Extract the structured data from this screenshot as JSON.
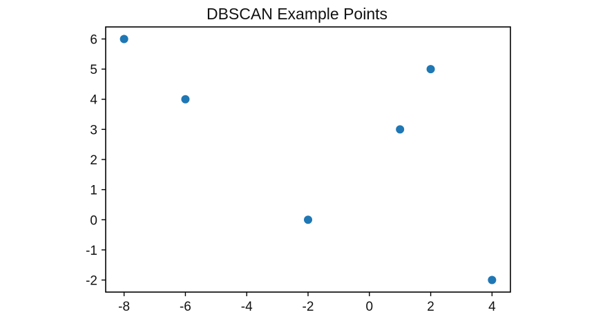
{
  "chart_data": {
    "type": "scatter",
    "title": "DBSCAN Example Points",
    "xlabel": "",
    "ylabel": "",
    "xlim": [
      -8.6,
      4.6
    ],
    "ylim": [
      -2.4,
      6.4
    ],
    "x_ticks": [
      -8,
      -6,
      -4,
      -2,
      0,
      2,
      4
    ],
    "y_ticks": [
      6,
      5,
      4,
      3,
      2,
      1,
      0,
      -1,
      -2
    ],
    "series": [
      {
        "points": [
          {
            "x": -8,
            "y": 6
          },
          {
            "x": -6,
            "y": 4
          },
          {
            "x": -2,
            "y": 0
          },
          {
            "x": 1,
            "y": 3
          },
          {
            "x": 2,
            "y": 5
          },
          {
            "x": 4,
            "y": -2
          }
        ],
        "color": "#1f77b4"
      }
    ],
    "grid": false,
    "legend": "none"
  }
}
